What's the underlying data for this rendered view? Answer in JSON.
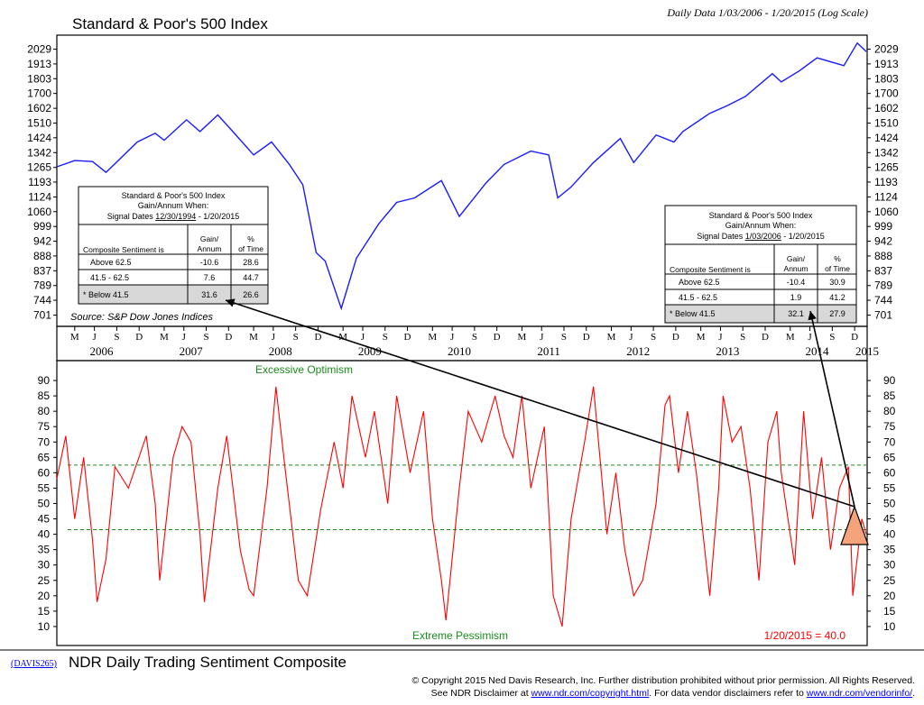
{
  "colors": {
    "index_line": "#1a1aff",
    "sentiment_line": "#ff0000",
    "guide": "#1a8a1a",
    "triangle_fill": "#f4a37a",
    "panel_border": "#000000"
  },
  "header": {
    "top_title": "Standard & Poor's 500 Index",
    "top_subtitle": "Daily Data 1/03/2006 - 1/20/2015 (Log Scale)",
    "bottom_title": "NDR Daily Trading Sentiment Composite",
    "code": "(DAVIS265)"
  },
  "footer": {
    "line1": "© Copyright 2015 Ned Davis Research, Inc.  Further distribution prohibited without prior permission.  All Rights Reserved.",
    "line2_a": "See NDR Disclaimer at ",
    "line2_link1": "www.ndr.com/copyright.html",
    "line2_b": ".  For data vendor disclaimers refer to ",
    "line2_link2": "www.ndr.com/vendorinfo/",
    "line2_c": "."
  },
  "source": "Source: S&P Dow Jones Indices",
  "chart_data": [
    {
      "type": "line",
      "title": "Standard & Poor's 500 Index",
      "scale": "log",
      "yticks": [
        701,
        744,
        789,
        837,
        888,
        942,
        999,
        1060,
        1124,
        1193,
        1265,
        1342,
        1424,
        1510,
        1602,
        1700,
        1803,
        1913,
        2029
      ],
      "ylim": [
        680,
        2100
      ],
      "xlim": [
        2006.0,
        2015.06
      ],
      "series": [
        {
          "name": "S&P 500",
          "x": [
            2006.0,
            2006.2,
            2006.4,
            2006.55,
            2006.9,
            2007.1,
            2007.2,
            2007.45,
            2007.6,
            2007.8,
            2007.95,
            2008.2,
            2008.4,
            2008.6,
            2008.75,
            2008.9,
            2009.0,
            2009.18,
            2009.35,
            2009.6,
            2009.8,
            2010.0,
            2010.3,
            2010.5,
            2010.8,
            2011.0,
            2011.3,
            2011.5,
            2011.6,
            2011.75,
            2012.0,
            2012.3,
            2012.45,
            2012.7,
            2012.9,
            2013.0,
            2013.3,
            2013.5,
            2013.7,
            2014.0,
            2014.1,
            2014.3,
            2014.5,
            2014.8,
            2014.95,
            2015.05
          ],
          "values": [
            1268,
            1300,
            1295,
            1240,
            1400,
            1450,
            1410,
            1530,
            1460,
            1560,
            1470,
            1330,
            1400,
            1280,
            1180,
            900,
            870,
            720,
            880,
            1010,
            1100,
            1120,
            1200,
            1040,
            1190,
            1280,
            1350,
            1330,
            1120,
            1170,
            1290,
            1420,
            1290,
            1440,
            1400,
            1460,
            1570,
            1620,
            1680,
            1840,
            1780,
            1860,
            1960,
            1900,
            2080,
            2010
          ]
        }
      ],
      "table_left": {
        "title1": "Standard & Poor's 500 Index",
        "title2": "Gain/Annum When:",
        "title3_a": "Signal Dates ",
        "title3_b": "12/30/1994",
        "title3_c": " - 1/20/2015",
        "columns": [
          "Composite Sentiment is",
          "Gain/ Annum",
          "% of Time"
        ],
        "rows": [
          {
            "label": "Above 62.5",
            "gain": "-10.6",
            "pct": "28.6"
          },
          {
            "label": "41.5 - 62.5",
            "gain": "7.6",
            "pct": "44.7"
          },
          {
            "label": "* Below 41.5",
            "gain": "31.6",
            "pct": "26.6"
          }
        ]
      },
      "table_right": {
        "title1": "Standard & Poor's 500 Index",
        "title2": "Gain/Annum When:",
        "title3_a": "Signal Dates ",
        "title3_b": "1/03/2006",
        "title3_c": " - 1/20/2015",
        "columns": [
          "Composite Sentiment is",
          "Gain/ Annum",
          "% of Time"
        ],
        "rows": [
          {
            "label": "Above 62.5",
            "gain": "-10.4",
            "pct": "30.9"
          },
          {
            "label": "41.5 - 62.5",
            "gain": "1.9",
            "pct": "41.2"
          },
          {
            "label": "* Below 41.5",
            "gain": "32.1",
            "pct": "27.9"
          }
        ]
      }
    },
    {
      "type": "line",
      "title": "NDR Daily Trading Sentiment Composite",
      "yticks": [
        10,
        15,
        20,
        25,
        30,
        35,
        40,
        45,
        50,
        55,
        60,
        65,
        70,
        75,
        80,
        85,
        90
      ],
      "ylim": [
        5,
        95
      ],
      "xlim": [
        2006.0,
        2015.06
      ],
      "thresholds": [
        62.5,
        41.5
      ],
      "label_top": "Excessive Optimism",
      "label_bottom": "Extreme Pessimism",
      "current_label": "1/20/2015 = 40.0",
      "series": [
        {
          "name": "Sentiment",
          "x": [
            2006.0,
            2006.1,
            2006.2,
            2006.3,
            2006.4,
            2006.45,
            2006.55,
            2006.65,
            2006.8,
            2007.0,
            2007.1,
            2007.15,
            2007.3,
            2007.4,
            2007.5,
            2007.6,
            2007.65,
            2007.8,
            2007.9,
            2008.05,
            2008.15,
            2008.2,
            2008.35,
            2008.45,
            2008.55,
            2008.7,
            2008.8,
            2008.95,
            2009.1,
            2009.2,
            2009.3,
            2009.45,
            2009.55,
            2009.7,
            2009.8,
            2009.95,
            2010.1,
            2010.2,
            2010.3,
            2010.35,
            2010.5,
            2010.6,
            2010.75,
            2010.9,
            2011.0,
            2011.1,
            2011.2,
            2011.3,
            2011.45,
            2011.55,
            2011.65,
            2011.75,
            2011.9,
            2012.0,
            2012.15,
            2012.25,
            2012.35,
            2012.45,
            2012.55,
            2012.7,
            2012.8,
            2012.85,
            2012.95,
            2013.05,
            2013.15,
            2013.3,
            2013.4,
            2013.45,
            2013.55,
            2013.65,
            2013.75,
            2013.85,
            2013.95,
            2014.05,
            2014.1,
            2014.25,
            2014.35,
            2014.45,
            2014.55,
            2014.65,
            2014.75,
            2014.85,
            2014.9,
            2015.0,
            2015.05
          ],
          "values": [
            58,
            72,
            45,
            65,
            38,
            18,
            32,
            62,
            55,
            72,
            50,
            25,
            65,
            75,
            70,
            40,
            18,
            55,
            72,
            35,
            22,
            20,
            55,
            88,
            62,
            25,
            20,
            48,
            70,
            55,
            85,
            65,
            80,
            50,
            85,
            60,
            80,
            45,
            25,
            12,
            55,
            80,
            70,
            85,
            72,
            65,
            85,
            55,
            75,
            20,
            10,
            45,
            70,
            88,
            40,
            60,
            35,
            20,
            25,
            50,
            82,
            85,
            60,
            80,
            60,
            20,
            55,
            85,
            70,
            75,
            55,
            25,
            70,
            80,
            60,
            30,
            80,
            45,
            65,
            35,
            55,
            62,
            20,
            45,
            40
          ]
        }
      ]
    }
  ],
  "x_axis": {
    "month_letters": [
      "M",
      "J",
      "S",
      "D",
      "M",
      "J",
      "S",
      "D",
      "M",
      "J",
      "S",
      "D",
      "M",
      "J",
      "S",
      "D",
      "M",
      "J",
      "S",
      "D",
      "M",
      "J",
      "S",
      "D",
      "M",
      "J",
      "S",
      "D",
      "M",
      "J",
      "S",
      "D",
      "M",
      "J",
      "S",
      "D"
    ],
    "years": [
      "2006",
      "2007",
      "2008",
      "2009",
      "2010",
      "2011",
      "2012",
      "2013",
      "2014",
      "2015"
    ]
  }
}
